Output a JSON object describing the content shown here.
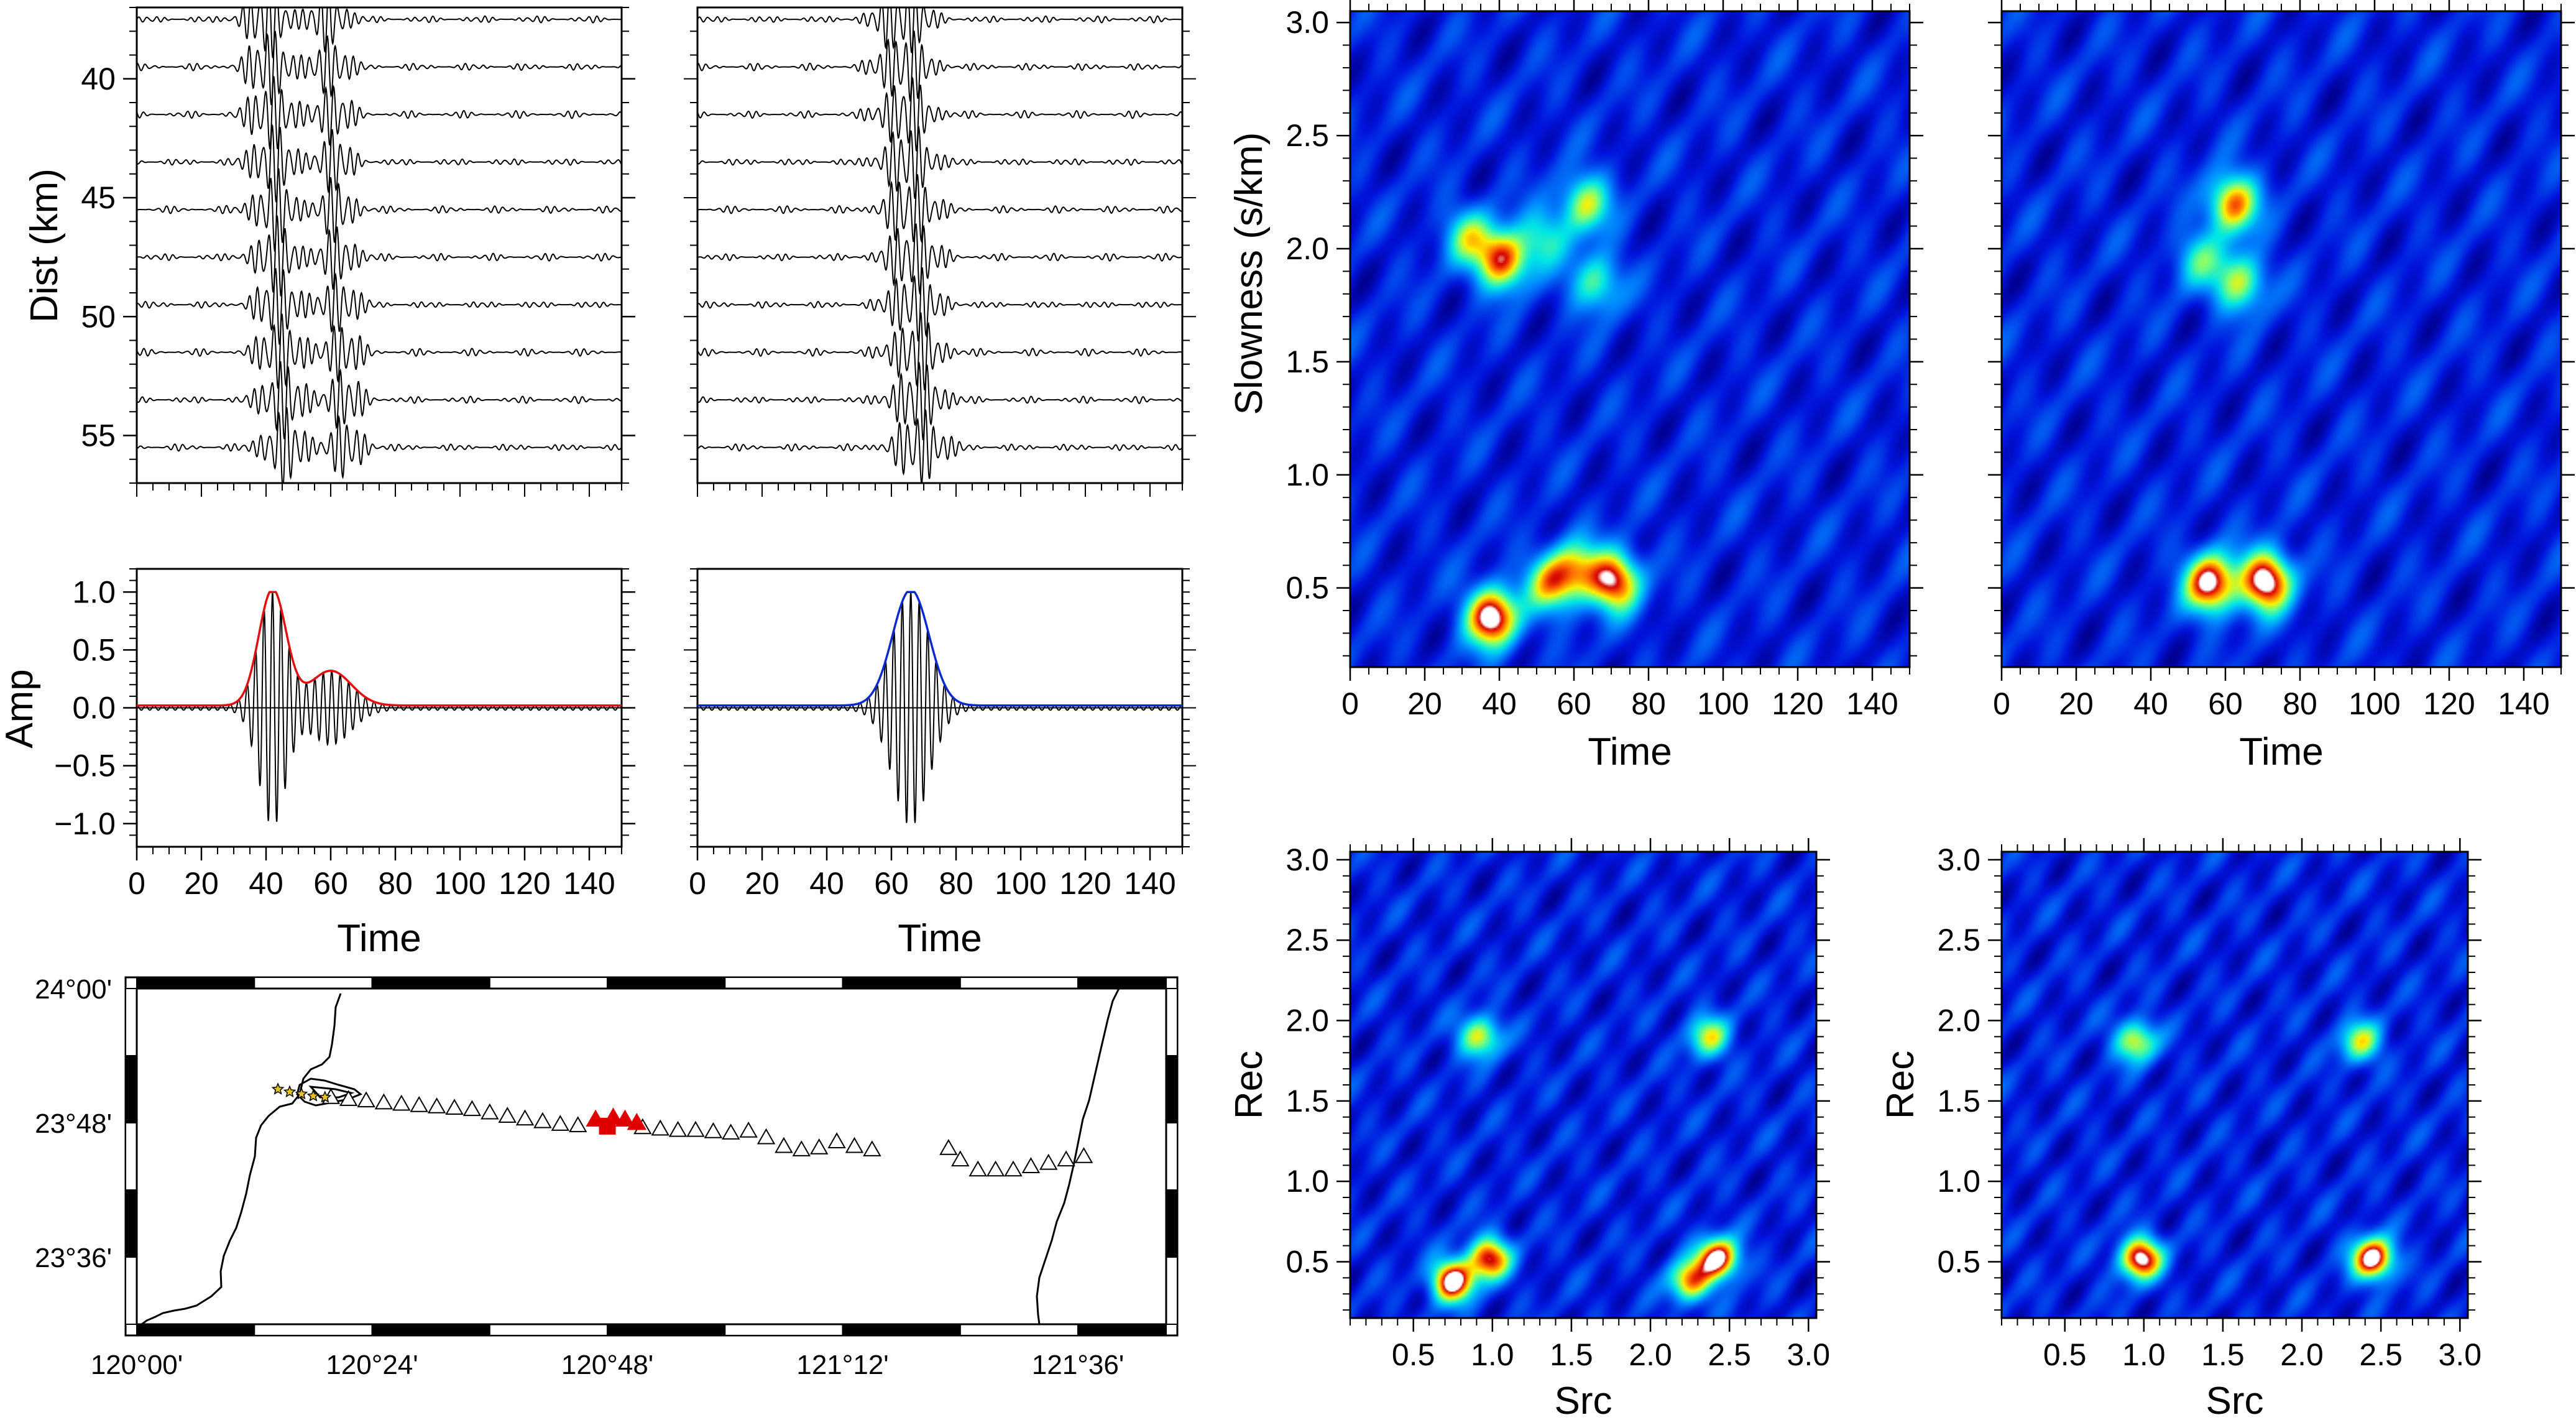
{
  "colors": {
    "envelope_left": "#e01010",
    "envelope_right": "#0a2ad0",
    "station": "#000000",
    "source": "#e00000",
    "rec": "#e8c020"
  },
  "chart_data": [
    {
      "type": "line",
      "panel": "section-left",
      "ylabel": "Dist (km)",
      "xlim": [
        0,
        150
      ],
      "ylim": [
        37,
        57
      ],
      "y_reversed": true,
      "yticks": [
        "40",
        "45",
        "50",
        "55"
      ],
      "trace_distances": [
        37.5,
        39.5,
        41.5,
        43.5,
        45.5,
        47.5,
        49.5,
        51.5,
        53.5,
        55.5
      ],
      "wave_packets": [
        {
          "center": 43,
          "width": 7
        },
        {
          "center": 62,
          "width": 6
        }
      ]
    },
    {
      "type": "line",
      "panel": "section-right",
      "xlim": [
        0,
        150
      ],
      "ylim": [
        37,
        57
      ],
      "y_reversed": true,
      "trace_distances": [
        37.5,
        39.5,
        41.5,
        43.5,
        45.5,
        47.5,
        49.5,
        51.5,
        53.5,
        55.5
      ],
      "wave_packets": [
        {
          "center": 66,
          "width": 8
        }
      ]
    },
    {
      "type": "line",
      "panel": "stack-left",
      "xlabel": "Time",
      "ylabel": "Amp",
      "xlim": [
        0,
        150
      ],
      "ylim": [
        -1.2,
        1.2
      ],
      "xticks": [
        "0",
        "20",
        "40",
        "60",
        "80",
        "100",
        "120",
        "140"
      ],
      "yticks": [
        "1.0",
        "0.5",
        "0.0",
        "−0.5",
        "−1.0"
      ],
      "series": [
        {
          "center": 42,
          "width": 6,
          "amplitude": 1.0,
          "secondary": {
            "center": 60,
            "width": 9,
            "amplitude": 0.3
          }
        }
      ]
    },
    {
      "type": "line",
      "panel": "stack-right",
      "xlabel": "Time",
      "xlim": [
        0,
        150
      ],
      "ylim": [
        -1.2,
        1.2
      ],
      "xticks": [
        "0",
        "20",
        "40",
        "60",
        "80",
        "100",
        "120",
        "140"
      ],
      "series": [
        {
          "center": 66,
          "width": 8,
          "amplitude": 1.0
        }
      ]
    },
    {
      "type": "heatmap",
      "panel": "slowness-time-left",
      "xlabel": "Time",
      "ylabel": "Slowness (s/km)",
      "xlim": [
        0,
        150
      ],
      "ylim": [
        0.15,
        3.05
      ],
      "xticks": [
        "0",
        "20",
        "40",
        "60",
        "80",
        "100",
        "120",
        "140"
      ],
      "yticks": [
        "0.5",
        "1.0",
        "1.5",
        "2.0",
        "2.5",
        "3.0"
      ],
      "peaks": [
        {
          "x": 38,
          "y": 0.37,
          "v": 1.0
        },
        {
          "x": 71,
          "y": 0.53,
          "v": 0.85
        },
        {
          "x": 54,
          "y": 0.52,
          "v": 0.6
        },
        {
          "x": 61,
          "y": 0.58,
          "v": 0.5
        },
        {
          "x": 41,
          "y": 1.95,
          "v": 0.8
        },
        {
          "x": 32,
          "y": 2.05,
          "v": 0.45
        },
        {
          "x": 63,
          "y": 2.2,
          "v": 0.55
        },
        {
          "x": 66,
          "y": 1.85,
          "v": 0.45
        },
        {
          "x": 52,
          "y": 2.05,
          "v": 0.35
        }
      ]
    },
    {
      "type": "heatmap",
      "panel": "slowness-time-right",
      "xlabel": "Time",
      "xlim": [
        0,
        150
      ],
      "ylim": [
        0.15,
        3.05
      ],
      "xticks": [
        "0",
        "20",
        "40",
        "60",
        "80",
        "100",
        "120",
        "140"
      ],
      "peaks": [
        {
          "x": 56,
          "y": 0.52,
          "v": 0.95
        },
        {
          "x": 71,
          "y": 0.53,
          "v": 1.0
        },
        {
          "x": 62,
          "y": 2.2,
          "v": 0.75
        },
        {
          "x": 64,
          "y": 1.85,
          "v": 0.55
        },
        {
          "x": 53,
          "y": 1.95,
          "v": 0.35
        }
      ]
    },
    {
      "type": "heatmap",
      "panel": "rec-src-left",
      "xlabel": "Src",
      "ylabel": "Rec",
      "xlim": [
        0.1,
        3.05
      ],
      "ylim": [
        0.15,
        3.05
      ],
      "xticks": [
        "0.5",
        "1.0",
        "1.5",
        "2.0",
        "2.5",
        "3.0"
      ],
      "yticks": [
        "0.5",
        "1.0",
        "1.5",
        "2.0",
        "2.5",
        "3.0"
      ],
      "peaks": [
        {
          "x": 0.75,
          "y": 0.38,
          "v": 1.0
        },
        {
          "x": 0.98,
          "y": 0.52,
          "v": 0.85
        },
        {
          "x": 2.43,
          "y": 0.52,
          "v": 0.95
        },
        {
          "x": 2.25,
          "y": 0.38,
          "v": 0.7
        },
        {
          "x": 0.92,
          "y": 1.9,
          "v": 0.6
        },
        {
          "x": 2.37,
          "y": 1.9,
          "v": 0.55
        }
      ]
    },
    {
      "type": "heatmap",
      "panel": "rec-src-right",
      "xlabel": "Src",
      "ylabel": "Rec",
      "xlim": [
        0.1,
        3.05
      ],
      "ylim": [
        0.15,
        3.05
      ],
      "xticks": [
        "0.5",
        "1.0",
        "1.5",
        "2.0",
        "2.5",
        "3.0"
      ],
      "yticks": [
        "0.5",
        "1.0",
        "1.5",
        "2.0",
        "2.5",
        "3.0"
      ],
      "peaks": [
        {
          "x": 0.98,
          "y": 0.52,
          "v": 0.95
        },
        {
          "x": 2.45,
          "y": 0.52,
          "v": 1.0
        },
        {
          "x": 0.95,
          "y": 1.87,
          "v": 0.6
        },
        {
          "x": 2.37,
          "y": 1.87,
          "v": 0.55
        }
      ]
    },
    {
      "type": "map",
      "panel": "station-map",
      "lon_range": [
        120.0,
        121.75
      ],
      "lat_range": [
        23.5,
        24.0
      ],
      "xticks": [
        "120°00'",
        "120°24'",
        "120°48'",
        "121°12'",
        "121°36'"
      ],
      "yticks": [
        "24°00'",
        "23°48'",
        "23°36'"
      ],
      "stations": [
        [
          120.33,
          23.838
        ],
        [
          120.36,
          23.835
        ],
        [
          120.39,
          23.833
        ],
        [
          120.42,
          23.83
        ],
        [
          120.45,
          23.828
        ],
        [
          120.48,
          23.826
        ],
        [
          120.51,
          23.824
        ],
        [
          120.54,
          23.822
        ],
        [
          120.57,
          23.82
        ],
        [
          120.6,
          23.815
        ],
        [
          120.63,
          23.81
        ],
        [
          120.66,
          23.806
        ],
        [
          120.69,
          23.802
        ],
        [
          120.72,
          23.798
        ],
        [
          120.75,
          23.796
        ],
        [
          120.86,
          23.793
        ],
        [
          120.89,
          23.791
        ],
        [
          120.92,
          23.789
        ],
        [
          120.95,
          23.789
        ],
        [
          120.98,
          23.787
        ],
        [
          121.01,
          23.785
        ],
        [
          121.04,
          23.788
        ],
        [
          121.07,
          23.778
        ],
        [
          121.1,
          23.765
        ],
        [
          121.13,
          23.76
        ],
        [
          121.16,
          23.763
        ],
        [
          121.19,
          23.772
        ],
        [
          121.22,
          23.765
        ],
        [
          121.25,
          23.76
        ],
        [
          121.38,
          23.762
        ],
        [
          121.4,
          23.745
        ],
        [
          121.43,
          23.73
        ],
        [
          121.46,
          23.73
        ],
        [
          121.49,
          23.73
        ],
        [
          121.52,
          23.735
        ],
        [
          121.55,
          23.74
        ],
        [
          121.58,
          23.745
        ],
        [
          121.61,
          23.75
        ]
      ],
      "source_stations": [
        [
          120.78,
          23.805
        ],
        [
          120.81,
          23.808
        ],
        [
          120.83,
          23.805
        ],
        [
          120.85,
          23.8
        ]
      ],
      "source": [
        120.8,
        23.795
      ],
      "receivers": [
        [
          120.24,
          23.85
        ],
        [
          120.26,
          23.846
        ],
        [
          120.28,
          23.843
        ],
        [
          120.3,
          23.84
        ],
        [
          120.32,
          23.838
        ]
      ]
    }
  ]
}
